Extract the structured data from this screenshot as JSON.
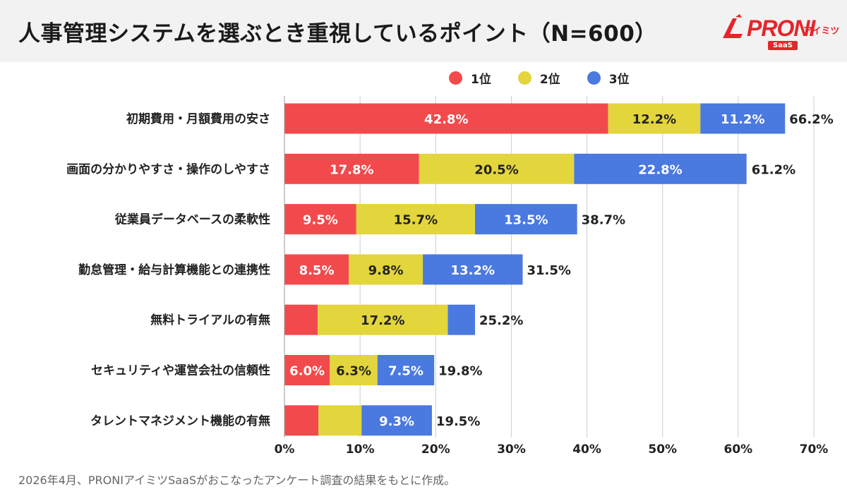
{
  "header": {
    "title": "人事管理システムを選ぶとき重視しているポイント（N=600）",
    "logo_text": "PRONI",
    "logo_kana": "アイミツ",
    "logo_badge": "SaaS"
  },
  "footer": {
    "note": "2026年4月、PRONIアイミツSaaSがおこなったアンケート調査の結果をもとに作成。"
  },
  "colors": {
    "rank1": "#f24a4c",
    "rank2": "#e3d53c",
    "rank3": "#4a79df",
    "grid": "#cccccc",
    "header_bg": "#f2f2f2"
  },
  "chart_data": {
    "type": "bar",
    "orientation": "horizontal",
    "stacked": true,
    "categories": [
      "初期費用・月額費用の安さ",
      "画面の分かりやすさ・操作のしやすさ",
      "従業員データベースの柔軟性",
      "勤怠管理・給与計算機能との連携性",
      "無料トライアルの有無",
      "セキュリティや運営会社の信頼性",
      "タレントマネジメント機能の有無"
    ],
    "series": [
      {
        "name": "1位",
        "values": [
          42.8,
          17.8,
          9.5,
          8.5,
          4.4,
          6.0,
          4.5
        ],
        "labels": [
          "42.8%",
          "17.8%",
          "9.5%",
          "8.5%",
          "",
          "6.0%",
          ""
        ]
      },
      {
        "name": "2位",
        "values": [
          12.2,
          20.5,
          15.7,
          9.8,
          17.2,
          6.3,
          5.7
        ],
        "labels": [
          "12.2%",
          "20.5%",
          "15.7%",
          "9.8%",
          "17.2%",
          "6.3%",
          ""
        ]
      },
      {
        "name": "3位",
        "values": [
          11.2,
          22.8,
          13.5,
          13.2,
          3.6,
          7.5,
          9.3
        ],
        "labels": [
          "11.2%",
          "22.8%",
          "13.5%",
          "13.2%",
          "",
          "7.5%",
          "9.3%"
        ]
      }
    ],
    "totals": [
      "66.2%",
      "61.2%",
      "38.7%",
      "31.5%",
      "25.2%",
      "19.8%",
      "19.5%"
    ],
    "total_values": [
      66.2,
      61.2,
      38.7,
      31.5,
      25.2,
      19.8,
      19.5
    ],
    "xlim": [
      0,
      70
    ],
    "x_ticks": [
      0,
      10,
      20,
      30,
      40,
      50,
      60,
      70
    ],
    "x_tick_labels": [
      "0%",
      "10%",
      "20%",
      "30%",
      "40%",
      "50%",
      "60%",
      "70%"
    ],
    "grid": true,
    "legend_position": "top"
  }
}
